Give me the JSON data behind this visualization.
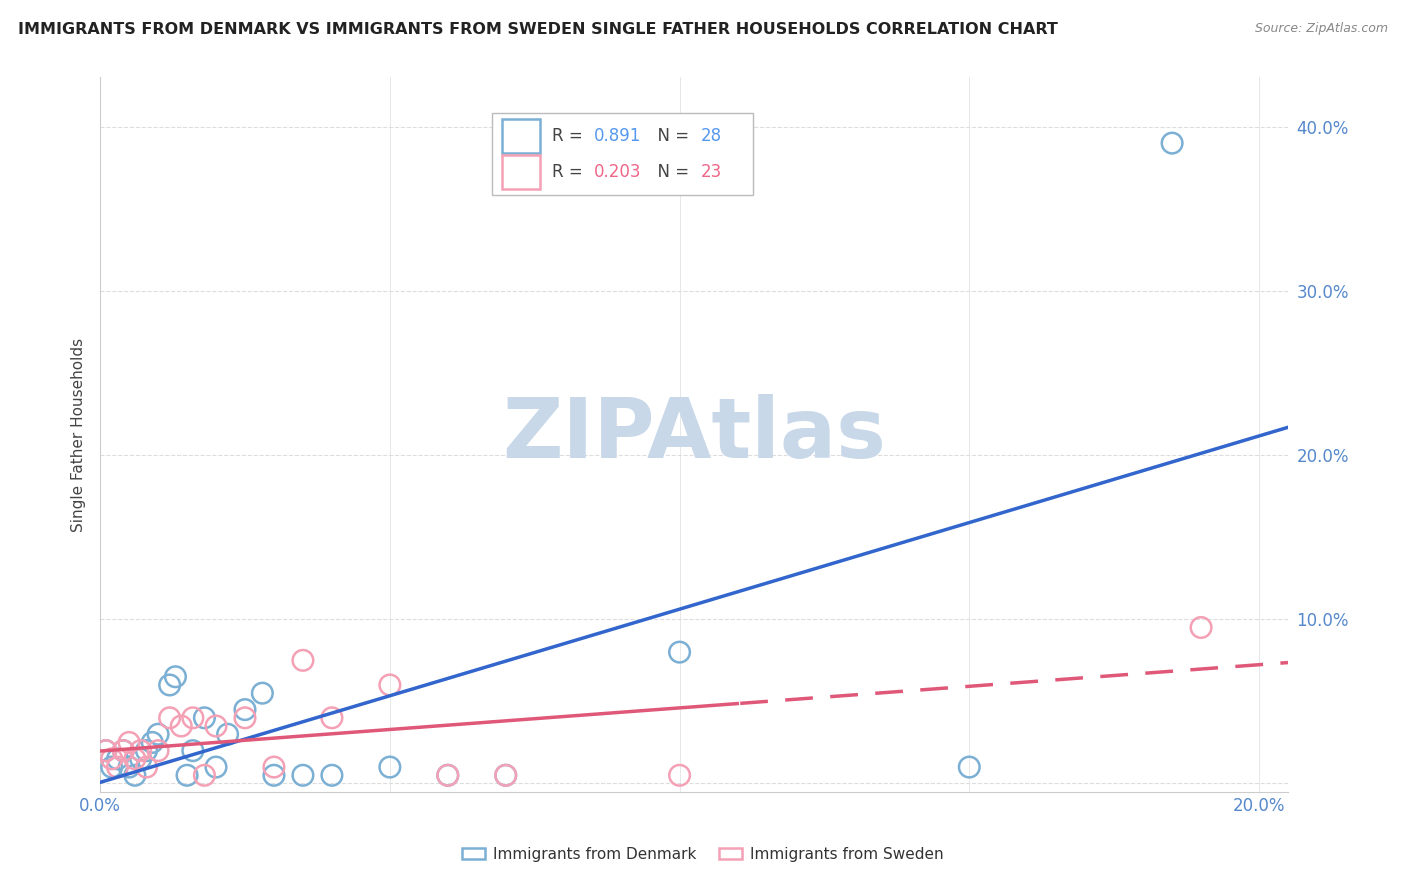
{
  "title": "IMMIGRANTS FROM DENMARK VS IMMIGRANTS FROM SWEDEN SINGLE FATHER HOUSEHOLDS CORRELATION CHART",
  "source": "Source: ZipAtlas.com",
  "ylabel": "Single Father Households",
  "ytick_vals": [
    0.0,
    0.1,
    0.2,
    0.3,
    0.4
  ],
  "ytick_labels": [
    "",
    "10.0%",
    "20.0%",
    "30.0%",
    "40.0%"
  ],
  "xlim": [
    0.0,
    0.205
  ],
  "ylim": [
    -0.005,
    0.43
  ],
  "denmark_R": 0.891,
  "denmark_N": 28,
  "sweden_R": 0.203,
  "sweden_N": 23,
  "denmark_color": "#7bafd4",
  "sweden_color": "#f4a0b5",
  "denmark_line_color": "#3366cc",
  "sweden_line_color": "#e05878",
  "denmark_x": [
    0.001,
    0.002,
    0.003,
    0.004,
    0.005,
    0.006,
    0.007,
    0.008,
    0.009,
    0.01,
    0.012,
    0.013,
    0.015,
    0.016,
    0.018,
    0.02,
    0.022,
    0.025,
    0.028,
    0.03,
    0.035,
    0.04,
    0.05,
    0.06,
    0.07,
    0.1,
    0.15,
    0.185
  ],
  "denmark_y": [
    0.02,
    0.01,
    0.015,
    0.02,
    0.01,
    0.005,
    0.015,
    0.02,
    0.025,
    0.03,
    0.06,
    0.065,
    0.005,
    0.02,
    0.04,
    0.01,
    0.03,
    0.045,
    0.055,
    0.005,
    0.005,
    0.005,
    0.01,
    0.005,
    0.005,
    0.08,
    0.01,
    0.39
  ],
  "sweden_x": [
    0.001,
    0.002,
    0.003,
    0.004,
    0.005,
    0.006,
    0.007,
    0.008,
    0.01,
    0.012,
    0.014,
    0.016,
    0.018,
    0.02,
    0.025,
    0.03,
    0.035,
    0.04,
    0.05,
    0.06,
    0.07,
    0.1,
    0.19
  ],
  "sweden_y": [
    0.02,
    0.015,
    0.01,
    0.02,
    0.025,
    0.015,
    0.02,
    0.01,
    0.02,
    0.04,
    0.035,
    0.04,
    0.005,
    0.035,
    0.04,
    0.01,
    0.075,
    0.04,
    0.06,
    0.005,
    0.005,
    0.005,
    0.095
  ],
  "watermark": "ZIPAtlas",
  "watermark_color": "#c8d8e8",
  "grid_color": "#dddddd",
  "background_color": "#ffffff",
  "legend_dk_color": "#5599ee",
  "legend_sw_color": "#ee6688"
}
